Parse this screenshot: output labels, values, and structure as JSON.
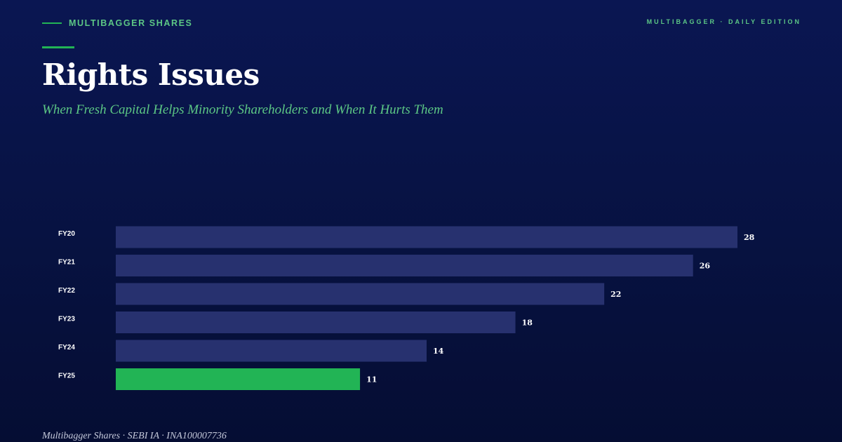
{
  "header": {
    "brand": "MULTIBAGGER SHARES",
    "edition": "MULTIBAGGER · DAILY EDITION"
  },
  "title": "Rights Issues",
  "subtitle": "When Fresh Capital Helps Minority Shareholders and When It Hurts Them",
  "footer": "Multibagger Shares · SEBI IA · INA100007736",
  "colors": {
    "accent": "#22b455",
    "bar_default": "#27316f",
    "bar_highlight": "#22b455",
    "label": "#ffffff",
    "background": "#071241"
  },
  "chart_data": {
    "type": "bar",
    "orientation": "horizontal",
    "categories": [
      "FY20",
      "FY21",
      "FY22",
      "FY23",
      "FY24",
      "FY25"
    ],
    "values": [
      28,
      26,
      22,
      18,
      14,
      11
    ],
    "highlight": "FY25",
    "xlim": [
      0,
      28
    ],
    "grid": false,
    "title": "",
    "xlabel": "",
    "ylabel": ""
  }
}
